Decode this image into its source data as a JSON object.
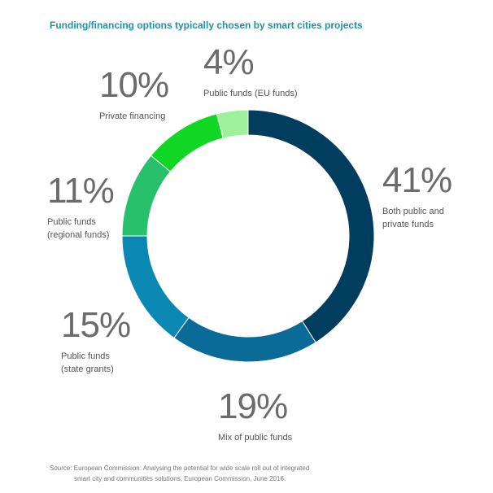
{
  "title": "Funding/financing options typically chosen by smart cities projects",
  "source": {
    "line1": "Source: European Commission: Analysing the potential for wide scale roll out of integrated",
    "line2": "smart city and communities solutions, European Commission, June 2016."
  },
  "chart_data": {
    "type": "pie",
    "style": "donut",
    "title": "Funding/financing options typically chosen by smart cities projects",
    "slices": [
      {
        "label": "Both public and private funds",
        "label_lines": "Both public and\nprivate funds",
        "value": 41,
        "percent_text": "41%",
        "color": "#003d5f"
      },
      {
        "label": "Mix of public funds",
        "label_lines": "Mix of public funds",
        "value": 19,
        "percent_text": "19%",
        "color": "#0a6a98"
      },
      {
        "label": "Public funds (state grants)",
        "label_lines": "Public funds\n(state grants)",
        "value": 15,
        "percent_text": "15%",
        "color": "#0a88b3"
      },
      {
        "label": "Public funds (regional funds)",
        "label_lines": "Public funds\n(regional funds)",
        "value": 11,
        "percent_text": "11%",
        "color": "#28c06a"
      },
      {
        "label": "Private financing",
        "label_lines": "Private financing",
        "value": 10,
        "percent_text": "10%",
        "color": "#0fd724"
      },
      {
        "label": "Public funds (EU funds)",
        "label_lines": "Public funds (EU funds)",
        "value": 4,
        "percent_text": "4%",
        "color": "#9ef09a"
      }
    ]
  }
}
